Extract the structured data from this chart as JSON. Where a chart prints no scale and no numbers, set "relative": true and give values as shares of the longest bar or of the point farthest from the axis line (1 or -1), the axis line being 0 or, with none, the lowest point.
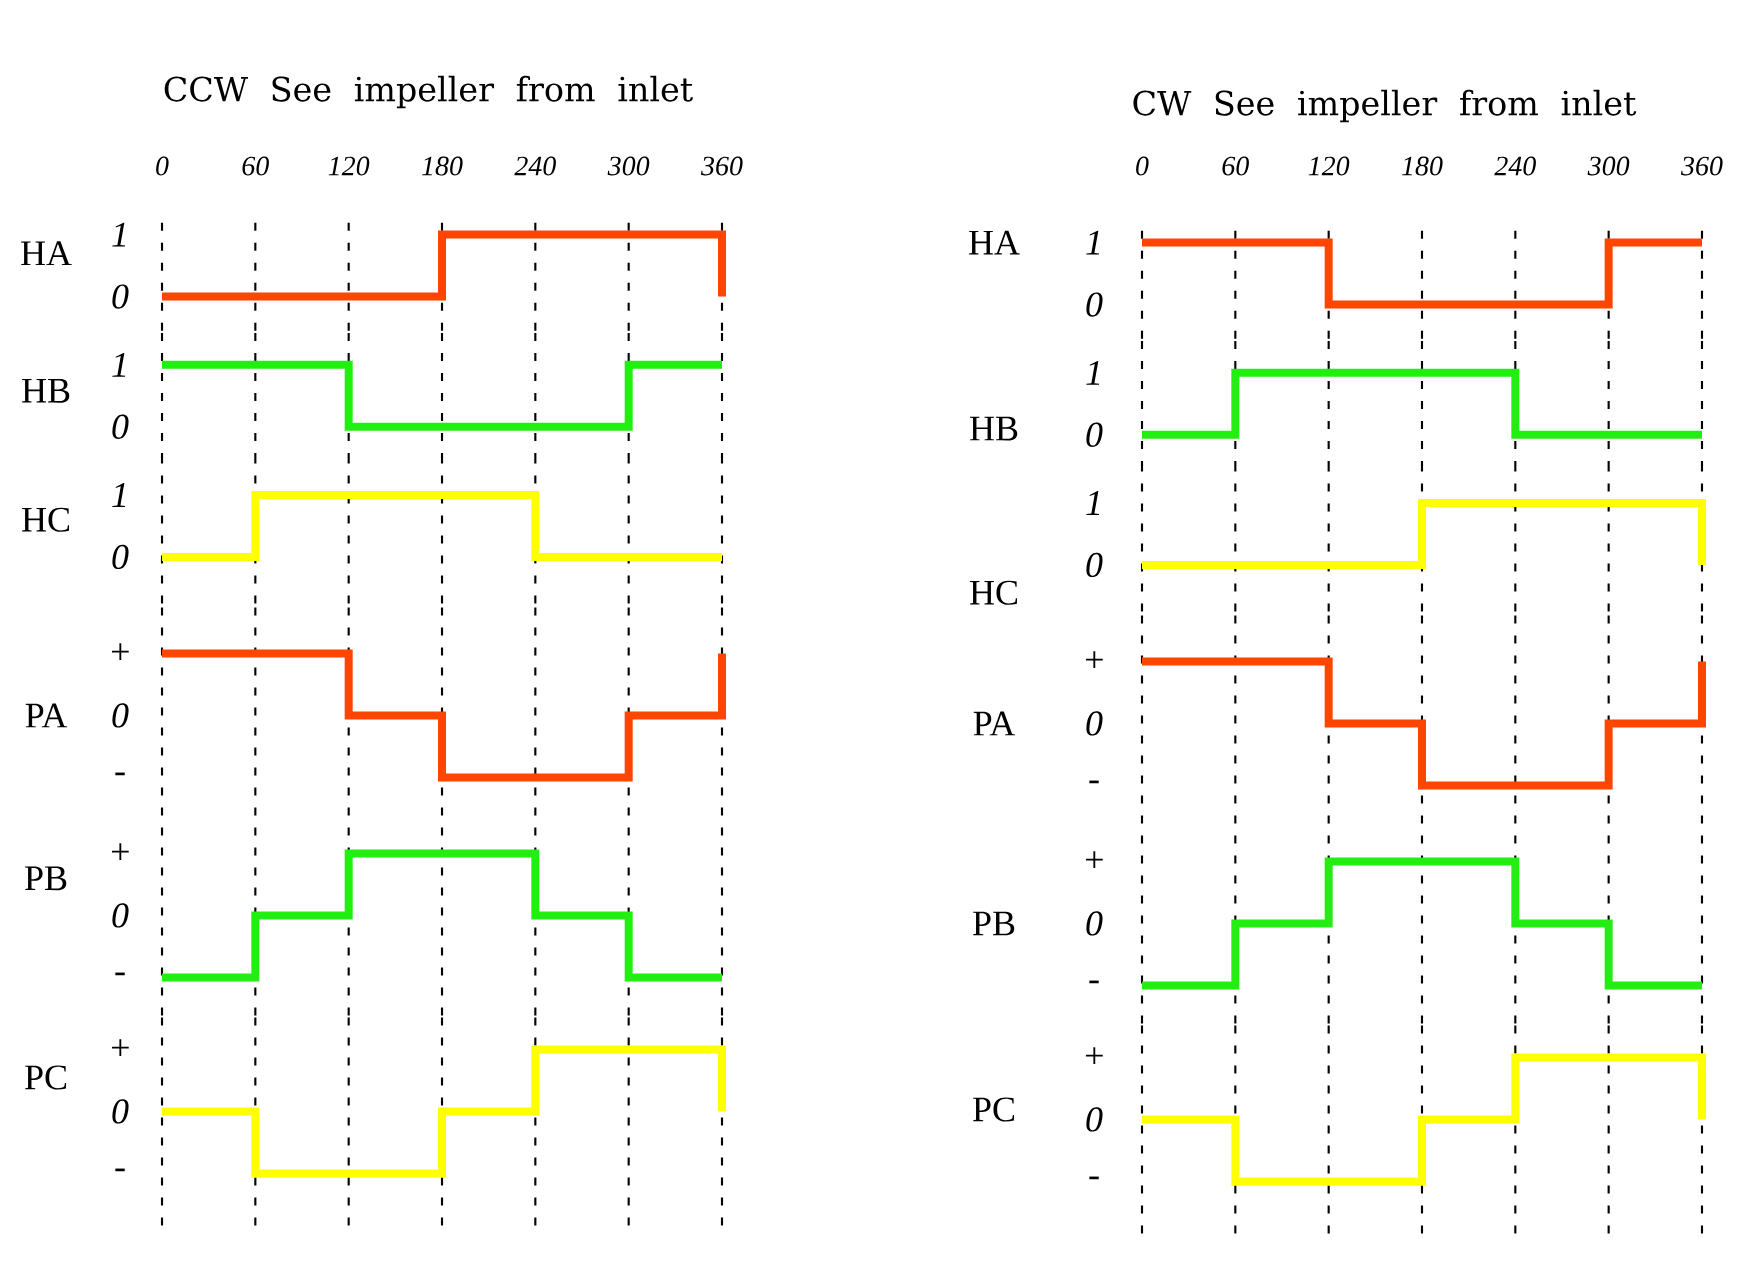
{
  "chart_data": [
    {
      "type": "step",
      "title": "CCW See impeller from inlet",
      "ylabel": "HA",
      "x": [
        0,
        60,
        120,
        180,
        240,
        300,
        360
      ],
      "values": [
        0,
        0,
        0,
        1,
        1,
        1,
        0
      ],
      "color": "#ff4500",
      "xlim": [
        0,
        360
      ],
      "xticks": [
        0,
        60,
        120,
        180,
        240,
        300,
        360
      ],
      "ylim": [
        -0.55,
        1.3
      ],
      "yticks": [
        0,
        1
      ],
      "grid": "x"
    },
    {
      "type": "step",
      "ylabel": "HB",
      "x": [
        0,
        60,
        120,
        180,
        240,
        300,
        360
      ],
      "values": [
        1,
        1,
        0,
        0,
        0,
        1,
        1
      ],
      "color": "#22ee11",
      "xlim": [
        0,
        360
      ],
      "xticks": [
        0,
        60,
        120,
        180,
        240,
        300,
        360
      ],
      "ylim": [
        -0.55,
        1.55
      ],
      "yticks": [
        0,
        1
      ],
      "grid": "x",
      "tick_labels": "y"
    },
    {
      "type": "step",
      "ylabel": "HC",
      "x": [
        0,
        60,
        120,
        180,
        240,
        300,
        360
      ],
      "values": [
        0,
        1,
        1,
        1,
        0,
        0,
        0
      ],
      "color": "#ffff00",
      "xlim": [
        0,
        360
      ],
      "xticks": [
        0,
        60,
        120,
        180,
        240,
        300,
        360
      ],
      "ylim": [
        -0.75,
        1.55
      ],
      "yticks": [
        0,
        1
      ],
      "grid": "x",
      "tick_labels": "y"
    },
    {
      "type": "step",
      "ylabel": "PA",
      "x": [
        0,
        60,
        120,
        180,
        240,
        300,
        360
      ],
      "values": [
        1,
        1,
        0.5,
        0,
        0,
        0.5,
        1
      ],
      "color": "#ff4500",
      "relative": true,
      "annotations": [
        "+",
        "0",
        "-"
      ],
      "xlim": [
        0,
        360
      ],
      "xticks": [
        0,
        60,
        120,
        180,
        240,
        300,
        360
      ],
      "grid": "x",
      "tick_labels": false
    },
    {
      "type": "step",
      "ylabel": "PB",
      "x": [
        0,
        60,
        120,
        180,
        240,
        300,
        360
      ],
      "values": [
        0,
        0.5,
        1,
        1,
        0.5,
        0,
        0
      ],
      "color": "#22ee11",
      "relative": true,
      "annotations": [
        "+",
        "0",
        "-"
      ],
      "xlim": [
        0,
        360
      ],
      "xticks": [
        0,
        60,
        120,
        180,
        240,
        300,
        360
      ],
      "grid": "x",
      "tick_labels": false
    },
    {
      "type": "step",
      "ylabel": "PC",
      "x": [
        0,
        60,
        120,
        180,
        240,
        300,
        360
      ],
      "values": [
        0.5,
        0,
        0,
        0.5,
        1,
        1,
        0.5
      ],
      "color": "#ffff00",
      "relative": true,
      "annotations": [
        "+",
        "0",
        "-"
      ],
      "xlim": [
        0,
        360
      ],
      "xticks": [
        0,
        60,
        120,
        180,
        240,
        300,
        360
      ],
      "grid": "x",
      "tick_labels": false
    },
    {
      "type": "step",
      "title": "CW See impeller from inlet",
      "ylabel": "HA",
      "x": [
        0,
        60,
        120,
        180,
        240,
        300,
        360
      ],
      "values": [
        1,
        1,
        0,
        0,
        0,
        1,
        1
      ],
      "color": "#ff4500",
      "xlim": [
        0,
        360
      ],
      "xticks": [
        0,
        60,
        120,
        180,
        240,
        300,
        360
      ],
      "ylim": [
        -0.55,
        1.3
      ],
      "yticks": [
        0,
        1
      ],
      "grid": "x"
    },
    {
      "type": "step",
      "ylabel": "HB",
      "x": [
        0,
        60,
        120,
        180,
        240,
        300,
        360
      ],
      "values": [
        0,
        1,
        1,
        1,
        0,
        0,
        0
      ],
      "color": "#22ee11",
      "xlim": [
        0,
        360
      ],
      "xticks": [
        0,
        60,
        120,
        180,
        240,
        300,
        360
      ],
      "ylim": [
        -0.55,
        1.55
      ],
      "yticks": [
        0,
        1
      ],
      "grid": "x",
      "tick_labels": "y"
    },
    {
      "type": "step",
      "ylabel": "HC",
      "x": [
        0,
        60,
        120,
        180,
        240,
        300,
        360
      ],
      "values": [
        0,
        0,
        0,
        1,
        1,
        1,
        0
      ],
      "color": "#ffff00",
      "xlim": [
        0,
        360
      ],
      "xticks": [
        0,
        60,
        120,
        180,
        240,
        300,
        360
      ],
      "ylim": [
        -0.75,
        1.55
      ],
      "yticks": [
        0,
        1
      ],
      "grid": "x",
      "tick_labels": "y"
    },
    {
      "type": "step",
      "ylabel": "PA",
      "x": [
        0,
        60,
        120,
        180,
        240,
        300,
        360
      ],
      "values": [
        1,
        1,
        0.5,
        0,
        0,
        0.5,
        1
      ],
      "color": "#ff4500",
      "relative": true,
      "annotations": [
        "+",
        "0",
        "-"
      ],
      "xlim": [
        0,
        360
      ],
      "xticks": [
        0,
        60,
        120,
        180,
        240,
        300,
        360
      ],
      "grid": "x",
      "tick_labels": false
    },
    {
      "type": "step",
      "ylabel": "PB",
      "x": [
        0,
        60,
        120,
        180,
        240,
        300,
        360
      ],
      "values": [
        0,
        0.5,
        1,
        1,
        0.5,
        0,
        0
      ],
      "color": "#22ee11",
      "relative": true,
      "annotations": [
        "+",
        "0",
        "-"
      ],
      "xlim": [
        0,
        360
      ],
      "xticks": [
        0,
        60,
        120,
        180,
        240,
        300,
        360
      ],
      "grid": "x",
      "tick_labels": false
    },
    {
      "type": "step",
      "ylabel": "PC",
      "x": [
        0,
        60,
        120,
        180,
        240,
        300,
        360
      ],
      "values": [
        0.5,
        0,
        0,
        0.5,
        1,
        1,
        0.5
      ],
      "color": "#ffff00",
      "relative": true,
      "annotations": [
        "+",
        "0",
        "-"
      ],
      "xlim": [
        0,
        360
      ],
      "xticks": [
        0,
        60,
        120,
        180,
        240,
        300,
        360
      ],
      "grid": "x",
      "tick_labels": false
    }
  ]
}
